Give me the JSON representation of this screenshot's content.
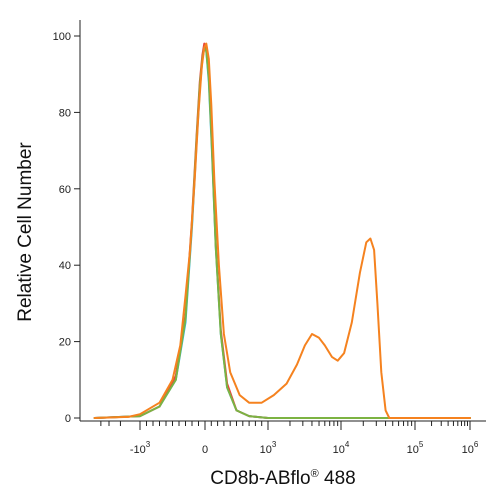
{
  "chart_data": {
    "type": "line",
    "title": "",
    "xlabel": "CD8b-ABflo",
    "xlabel_mark": "®",
    "xlabel_suffix": " 488",
    "ylabel": "Relative Cell Number",
    "ylim": [
      0,
      100
    ],
    "x_scale": "biexponential",
    "y_ticks": [
      0,
      20,
      40,
      60,
      80,
      100
    ],
    "x_ticks": [
      {
        "value": -1000,
        "base": "-10",
        "exp": "3"
      },
      {
        "value": 0,
        "base": "0",
        "exp": ""
      },
      {
        "value": 1000,
        "base": "10",
        "exp": "3"
      },
      {
        "value": 10000,
        "base": "10",
        "exp": "4"
      },
      {
        "value": 100000,
        "base": "10",
        "exp": "5"
      },
      {
        "value": 1000000,
        "base": "10",
        "exp": "6"
      }
    ],
    "grid": false,
    "legend": "none",
    "series": [
      {
        "color": "#29b6e8",
        "points": [
          [
            -5000,
            0
          ],
          [
            -1000,
            0.5
          ],
          [
            -700,
            3
          ],
          [
            -450,
            10
          ],
          [
            -300,
            25
          ],
          [
            -200,
            50
          ],
          [
            -130,
            72
          ],
          [
            -80,
            86
          ],
          [
            -40,
            94
          ],
          [
            -10,
            97
          ],
          [
            20,
            96
          ],
          [
            60,
            88
          ],
          [
            110,
            70
          ],
          [
            170,
            45
          ],
          [
            250,
            22
          ],
          [
            350,
            8
          ],
          [
            500,
            2
          ],
          [
            700,
            0.5
          ],
          [
            1000,
            0
          ],
          [
            1000000,
            0
          ]
        ]
      },
      {
        "color": "#e8433a",
        "points": [
          [
            -5000,
            0
          ],
          [
            -1000,
            0.5
          ],
          [
            -700,
            3
          ],
          [
            -450,
            11
          ],
          [
            -300,
            27
          ],
          [
            -200,
            52
          ],
          [
            -130,
            74
          ],
          [
            -80,
            88
          ],
          [
            -40,
            95
          ],
          [
            -10,
            98
          ],
          [
            20,
            97
          ],
          [
            60,
            90
          ],
          [
            110,
            72
          ],
          [
            170,
            46
          ],
          [
            250,
            23
          ],
          [
            350,
            9
          ],
          [
            500,
            2
          ],
          [
            700,
            0.5
          ],
          [
            1000,
            0
          ],
          [
            1000000,
            0
          ]
        ]
      },
      {
        "color": "#7cb342",
        "points": [
          [
            -5000,
            0
          ],
          [
            -1000,
            0.5
          ],
          [
            -700,
            3
          ],
          [
            -450,
            10
          ],
          [
            -300,
            26
          ],
          [
            -200,
            51
          ],
          [
            -130,
            73
          ],
          [
            -80,
            87
          ],
          [
            -40,
            94
          ],
          [
            -10,
            97
          ],
          [
            20,
            96
          ],
          [
            60,
            89
          ],
          [
            110,
            71
          ],
          [
            170,
            45
          ],
          [
            250,
            22
          ],
          [
            350,
            8
          ],
          [
            500,
            2
          ],
          [
            700,
            0.5
          ],
          [
            1000,
            0
          ],
          [
            1000000,
            0
          ]
        ]
      },
      {
        "color": "#f5821f",
        "points": [
          [
            -5000,
            0
          ],
          [
            -1500,
            0.3
          ],
          [
            -1000,
            1
          ],
          [
            -700,
            4
          ],
          [
            -500,
            10
          ],
          [
            -380,
            19
          ],
          [
            -300,
            32
          ],
          [
            -230,
            44
          ],
          [
            -160,
            62
          ],
          [
            -100,
            80
          ],
          [
            -50,
            92
          ],
          [
            -10,
            97
          ],
          [
            20,
            98
          ],
          [
            60,
            94
          ],
          [
            100,
            82
          ],
          [
            150,
            62
          ],
          [
            220,
            40
          ],
          [
            300,
            22
          ],
          [
            400,
            12
          ],
          [
            550,
            6
          ],
          [
            700,
            4
          ],
          [
            900,
            4
          ],
          [
            1200,
            6
          ],
          [
            1800,
            9
          ],
          [
            2500,
            14
          ],
          [
            3200,
            19
          ],
          [
            4000,
            22
          ],
          [
            5000,
            21
          ],
          [
            6000,
            19
          ],
          [
            7500,
            16
          ],
          [
            9000,
            15
          ],
          [
            11000,
            17
          ],
          [
            14000,
            25
          ],
          [
            18000,
            38
          ],
          [
            22000,
            46
          ],
          [
            25000,
            47
          ],
          [
            28000,
            44
          ],
          [
            31000,
            30
          ],
          [
            35000,
            12
          ],
          [
            40000,
            2
          ],
          [
            45000,
            0
          ],
          [
            1000000,
            0
          ]
        ]
      }
    ]
  }
}
